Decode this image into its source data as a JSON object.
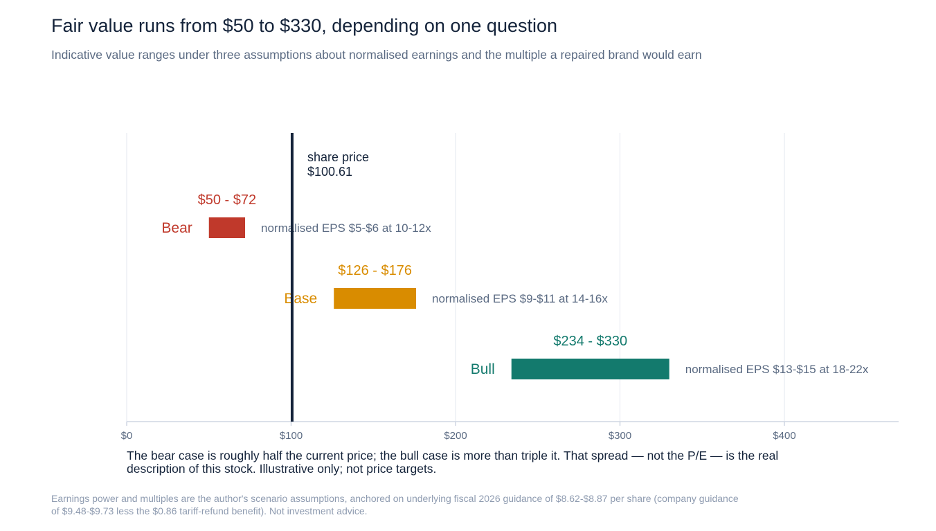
{
  "title": "Fair value runs from $50 to $330, depending on one question",
  "subtitle": "Indicative value ranges under three assumptions about normalised earnings and the multiple a repaired brand would earn",
  "annotation": "The bear case is roughly half the current price; the bull case is more than triple it. That spread — not the P/E — is the real description of this stock. Illustrative only; not price targets.",
  "footnote": "Earnings power and multiples are the author's scenario assumptions, anchored on underlying fiscal 2026 guidance of $8.62-$8.87 per share (company guidance of $9.48-$9.73 less the $0.86 tariff-refund benefit). Not investment advice.",
  "chart_data": {
    "type": "bar",
    "orientation": "horizontal-range",
    "xlim": [
      0,
      470
    ],
    "x_ticks": [
      0,
      100,
      200,
      300,
      400
    ],
    "x_tick_labels": [
      "$0",
      "$100",
      "$200",
      "$300",
      "$400"
    ],
    "grid": true,
    "reference_line": {
      "value": 100.61,
      "label_line1": "share price",
      "label_line2": "$100.61",
      "color": "#14233a"
    },
    "series": [
      {
        "name": "Bear",
        "low": 50,
        "high": 72,
        "range_label": "$50 - $72",
        "note": "normalised EPS $5-$6 at 10-12x",
        "color": "#c0392b"
      },
      {
        "name": "Base",
        "low": 126,
        "high": 176,
        "range_label": "$126 - $176",
        "note": "normalised EPS $9-$11 at 14-16x",
        "color": "#d98c00"
      },
      {
        "name": "Bull",
        "low": 234,
        "high": 330,
        "range_label": "$234 - $330",
        "note": "normalised EPS $13-$15 at 18-22x",
        "color": "#137a6d"
      }
    ]
  }
}
